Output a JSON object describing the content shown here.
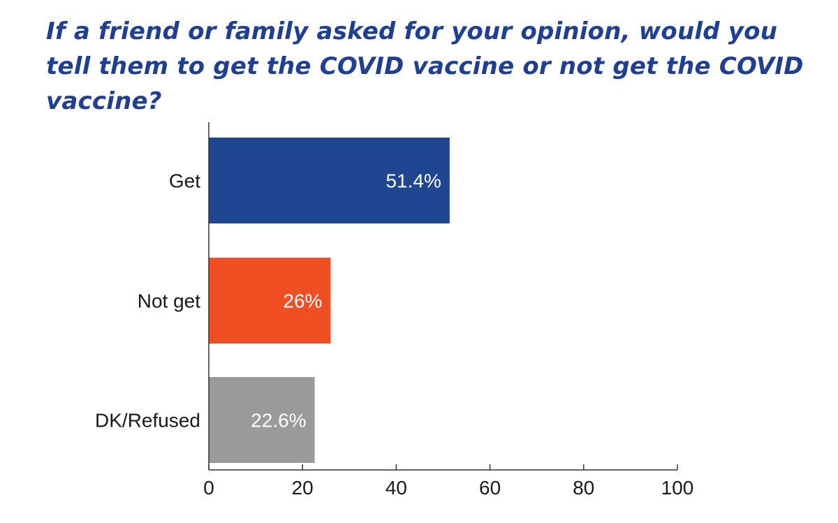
{
  "chart_data": {
    "type": "bar",
    "orientation": "horizontal",
    "title": "If a friend or family asked for your opinion, would you tell them to get the COVID vaccine or not get the COVID vaccine?",
    "xlabel": "",
    "ylabel": "",
    "categories": [
      "Get",
      "Not get",
      "DK/Refused"
    ],
    "values": [
      51.4,
      26,
      22.6
    ],
    "value_labels": [
      "51.4%",
      "26%",
      "22.6%"
    ],
    "colors": [
      "#1f4690",
      "#f04e23",
      "#9a9a9a"
    ],
    "xlim": [
      0,
      100
    ],
    "xticks": [
      "0",
      "20",
      "40",
      "60",
      "80",
      "100"
    ],
    "grid": false,
    "legend": "none"
  },
  "colors": {
    "title": "#1f3f95",
    "axis": "#333333",
    "bar_text": "#ffffff"
  }
}
